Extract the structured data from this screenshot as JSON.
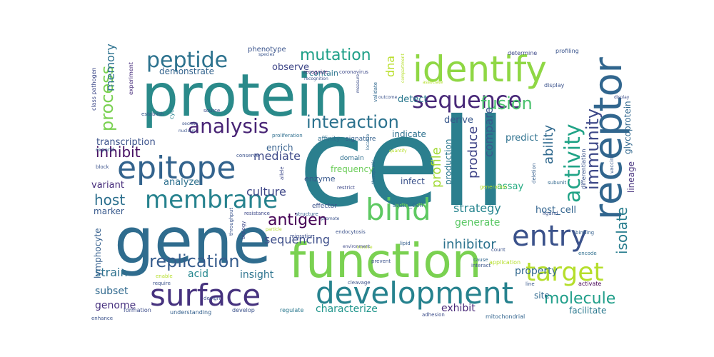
{
  "wordcloud": {
    "palette": "viridis",
    "words": [
      {
        "text": "cell",
        "color": "#2b7f8e"
      },
      {
        "text": "protein",
        "color": "#2a8a8a"
      },
      {
        "text": "gene",
        "color": "#2f6c8e"
      },
      {
        "text": "function",
        "color": "#7ad151"
      },
      {
        "text": "identify",
        "color": "#8fd744"
      },
      {
        "text": "receptor",
        "color": "#31668e"
      },
      {
        "text": "epitope",
        "color": "#33638d"
      },
      {
        "text": "surface",
        "color": "#46327e"
      },
      {
        "text": "development",
        "color": "#26828e"
      },
      {
        "text": "bind",
        "color": "#5ec962"
      },
      {
        "text": "entry",
        "color": "#3b528b"
      },
      {
        "text": "target",
        "color": "#b5de2b"
      },
      {
        "text": "membrane",
        "color": "#26828e"
      },
      {
        "text": "sequence",
        "color": "#482878"
      },
      {
        "text": "peptide",
        "color": "#2c728e"
      },
      {
        "text": "analysis",
        "color": "#482475"
      },
      {
        "text": "mutation",
        "color": "#1fa088"
      },
      {
        "text": "interaction",
        "color": "#2c728e"
      },
      {
        "text": "activity",
        "color": "#20a386"
      },
      {
        "text": "immunity",
        "color": "#3e4989"
      },
      {
        "text": "fusion",
        "color": "#4ac16d"
      },
      {
        "text": "molecule",
        "color": "#1f9e89"
      },
      {
        "text": "replication",
        "color": "#365c8d"
      },
      {
        "text": "antigen",
        "color": "#440154"
      },
      {
        "text": "process",
        "color": "#7ad151"
      },
      {
        "text": "inhibit",
        "color": "#471063"
      },
      {
        "text": "host",
        "color": "#2d708e"
      },
      {
        "text": "culture",
        "color": "#3f4788"
      },
      {
        "text": "mediate",
        "color": "#3e4a89"
      },
      {
        "text": "produce",
        "color": "#404588"
      },
      {
        "text": "compare",
        "color": "#38588c"
      },
      {
        "text": "ability",
        "color": "#30698e"
      },
      {
        "text": "profile",
        "color": "#a2da37"
      },
      {
        "text": "strategy",
        "color": "#25848e"
      },
      {
        "text": "inhibitor",
        "color": "#2c728e"
      },
      {
        "text": "isolate",
        "color": "#287d8e"
      },
      {
        "text": "sequencing",
        "color": "#3d4e8a"
      },
      {
        "text": "generate",
        "color": "#5ac864"
      },
      {
        "text": "property",
        "color": "#31688e"
      },
      {
        "text": "strain",
        "color": "#2d718e"
      },
      {
        "text": "acid",
        "color": "#24868e"
      },
      {
        "text": "insight",
        "color": "#2c738e"
      },
      {
        "text": "characterize",
        "color": "#1f958b"
      },
      {
        "text": "exhibit",
        "color": "#482878"
      },
      {
        "text": "subset",
        "color": "#30698e"
      },
      {
        "text": "genome",
        "color": "#46307e"
      },
      {
        "text": "demonstrate",
        "color": "#33638d"
      },
      {
        "text": "observe",
        "color": "#3f4788"
      },
      {
        "text": "contain",
        "color": "#2b748e"
      },
      {
        "text": "phenotype",
        "color": "#3a548c"
      },
      {
        "text": "memory",
        "color": "#2c718e"
      },
      {
        "text": "dna",
        "color": "#b8de29"
      },
      {
        "text": "detect",
        "color": "#2a788e"
      },
      {
        "text": "derive",
        "color": "#38588c"
      },
      {
        "text": "indicate",
        "color": "#2d708e"
      },
      {
        "text": "enrich",
        "color": "#355f8d"
      },
      {
        "text": "transcription",
        "color": "#3b528b"
      },
      {
        "text": "variant",
        "color": "#472d7b"
      },
      {
        "text": "analyze",
        "color": "#2d708e"
      },
      {
        "text": "frequency",
        "color": "#6ccd5a"
      },
      {
        "text": "enzyme",
        "color": "#38588c"
      },
      {
        "text": "production",
        "color": "#2a778e"
      },
      {
        "text": "infect",
        "color": "#3b528b"
      },
      {
        "text": "assay",
        "color": "#25ab82"
      },
      {
        "text": "lineage",
        "color": "#46327e"
      },
      {
        "text": "predict",
        "color": "#2d708e"
      },
      {
        "text": "glycoprotein",
        "color": "#31688e"
      },
      {
        "text": "host_cell",
        "color": "#32648e"
      },
      {
        "text": "marker",
        "color": "#38598c"
      },
      {
        "text": "lymphocyte",
        "color": "#355f8d"
      },
      {
        "text": "site",
        "color": "#30698e"
      },
      {
        "text": "facilitate",
        "color": "#2a788e"
      },
      {
        "text": "stem_cell",
        "color": "#31688e"
      },
      {
        "text": "affinity",
        "color": "#2e6f8e"
      },
      {
        "text": "signature",
        "color": "#34608d"
      },
      {
        "text": "effector",
        "color": "#3b528b"
      },
      {
        "text": "domain",
        "color": "#2e6e8e"
      },
      {
        "text": "mitochondrial",
        "color": "#32648e"
      },
      {
        "text": "formation",
        "color": "#3d4d8a"
      },
      {
        "text": "understanding",
        "color": "#34608d"
      },
      {
        "text": "develop",
        "color": "#3b528b"
      },
      {
        "text": "regulate",
        "color": "#2a788e"
      },
      {
        "text": "activate",
        "color": "#440154"
      },
      {
        "text": "application",
        "color": "#b5de2b"
      },
      {
        "text": "determine",
        "color": "#3e4989"
      },
      {
        "text": "profiling",
        "color": "#3a548c"
      },
      {
        "text": "class pathogen",
        "color": "#3e4989"
      },
      {
        "text": "experiment",
        "color": "#472d7b"
      },
      {
        "text": "display",
        "color": "#3b528b"
      },
      {
        "text": "recognize",
        "color": "#481b6d"
      },
      {
        "text": "coronavirus",
        "color": "#3e4a89"
      },
      {
        "text": "establish",
        "color": "#38588c"
      },
      {
        "text": "cycle",
        "color": "#26828e"
      },
      {
        "text": "source",
        "color": "#3d4e8a"
      },
      {
        "text": "differentiation",
        "color": "#3b528b"
      },
      {
        "text": "proliferation",
        "color": "#2e6e8e"
      },
      {
        "text": "block",
        "color": "#3b528b"
      },
      {
        "text": "expand",
        "color": "#355f8d"
      },
      {
        "text": "binding",
        "color": "#34608d"
      },
      {
        "text": "resistance",
        "color": "#3e4989"
      },
      {
        "text": "prevent",
        "color": "#3b528b"
      },
      {
        "text": "biology",
        "color": "#3e4989"
      },
      {
        "text": "throughput",
        "color": "#3a548c"
      },
      {
        "text": "endocytosis",
        "color": "#3b528b"
      },
      {
        "text": "lipid",
        "color": "#355f8d"
      },
      {
        "text": "count",
        "color": "#3b528b"
      },
      {
        "text": "interact",
        "color": "#3a548c"
      },
      {
        "text": "cause",
        "color": "#31688e"
      },
      {
        "text": "encode",
        "color": "#2e6e8e"
      },
      {
        "text": "ligand",
        "color": "#3a548c"
      },
      {
        "text": "line",
        "color": "#38588c"
      },
      {
        "text": "cleavage",
        "color": "#3b528b"
      },
      {
        "text": "adhesion",
        "color": "#3d4e8a"
      },
      {
        "text": "require",
        "color": "#3b528b"
      },
      {
        "text": "enable",
        "color": "#b5de2b"
      },
      {
        "text": "design",
        "color": "#3d4e8a"
      },
      {
        "text": "enhance",
        "color": "#3b528b"
      },
      {
        "text": "vaccine",
        "color": "#38598c"
      },
      {
        "text": "generation",
        "color": "#b5de2b"
      },
      {
        "text": "deletion",
        "color": "#355f8d"
      },
      {
        "text": "restrict",
        "color": "#3e4989"
      },
      {
        "text": "subunit",
        "color": "#31688e"
      },
      {
        "text": "conserve",
        "color": "#3b528b"
      },
      {
        "text": "migration",
        "color": "#3d4e8a"
      },
      {
        "text": "structure",
        "color": "#34608d"
      },
      {
        "text": "allele",
        "color": "#3e4989"
      },
      {
        "text": "species",
        "color": "#3a548c"
      },
      {
        "text": "recognition",
        "color": "#3b528b"
      },
      {
        "text": "validate",
        "color": "#31688e"
      },
      {
        "text": "particle",
        "color": "#b5de2b"
      },
      {
        "text": "display",
        "color": "#3d4e8a"
      },
      {
        "text": "promote",
        "color": "#3b528b"
      },
      {
        "text": "involve",
        "color": "#b5de2b"
      },
      {
        "text": "therapeutic",
        "color": "#31688e"
      },
      {
        "text": "environment",
        "color": "#3e4989"
      },
      {
        "text": "nucleus",
        "color": "#3a548c"
      },
      {
        "text": "secrete",
        "color": "#3b528b"
      },
      {
        "text": "measure",
        "color": "#3d4e8a"
      },
      {
        "text": "quantify",
        "color": "#b5de2b"
      },
      {
        "text": "compartment",
        "color": "#b5de2b"
      },
      {
        "text": "localize",
        "color": "#31688e"
      },
      {
        "text": "outcome",
        "color": "#3b528b"
      },
      {
        "text": "associate",
        "color": "#b5de2b"
      }
    ]
  }
}
